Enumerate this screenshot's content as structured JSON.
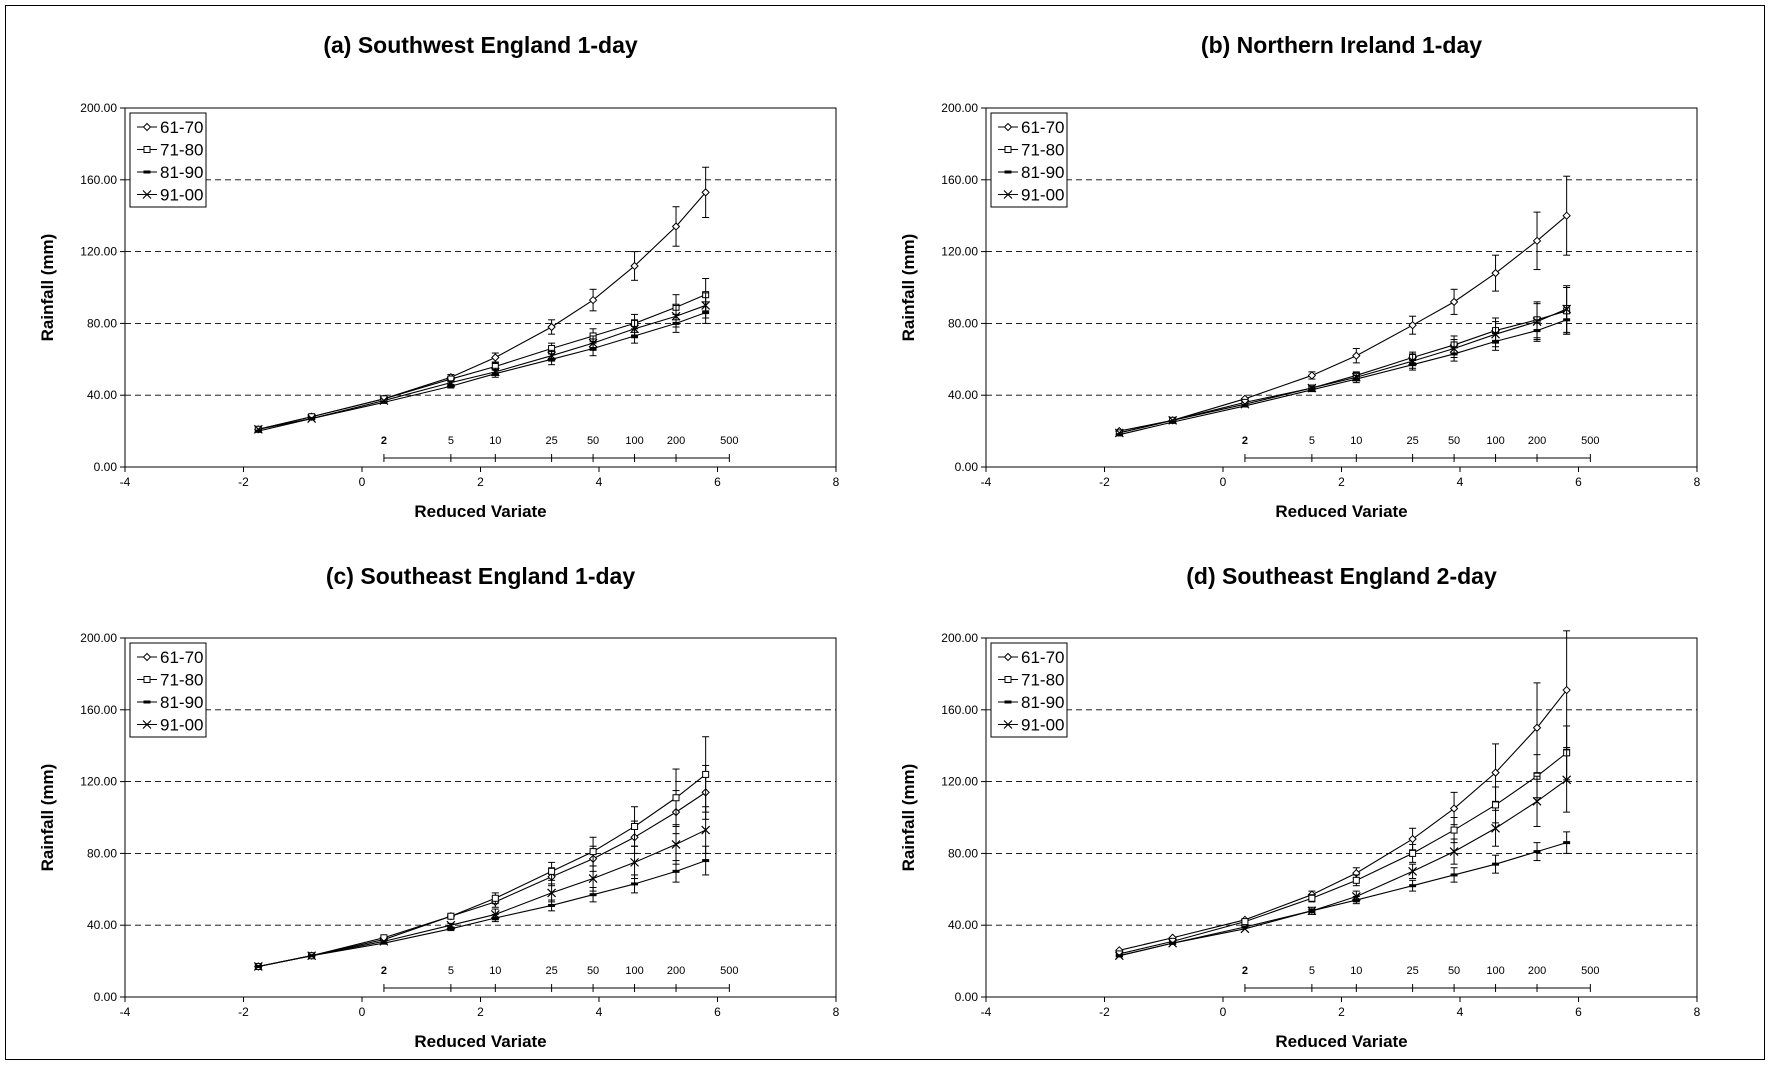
{
  "chart_data": [
    {
      "type": "line",
      "title": "(a) Southwest England 1-day",
      "xlabel": "Reduced Variate",
      "ylabel": "Rainfall (mm)",
      "xlim": [
        -4,
        8
      ],
      "ylim": [
        0,
        200
      ],
      "xticks": [
        "-4",
        "-2",
        "0",
        "2",
        "4",
        "6",
        "8"
      ],
      "yticks": [
        "0.00",
        "40.00",
        "80.00",
        "120.00",
        "160.00",
        "200.00"
      ],
      "gridlines": "horizontal dashed",
      "legend_position": "top-left",
      "return_period_axis": {
        "labels": [
          "2",
          "5",
          "10",
          "25",
          "50",
          "100",
          "200",
          "500"
        ],
        "y": 5
      },
      "x": [
        -1.75,
        -0.85,
        0.37,
        1.5,
        2.25,
        3.2,
        3.9,
        4.6,
        5.3,
        5.8
      ],
      "series": [
        {
          "name": "61-70",
          "marker": "diamond",
          "values": [
            21,
            28,
            38,
            50,
            61,
            78,
            93,
            112,
            134,
            153
          ],
          "errors": [
            0,
            0,
            0,
            1.5,
            2.5,
            4,
            6,
            8,
            11,
            14
          ]
        },
        {
          "name": "71-80",
          "marker": "square",
          "values": [
            21,
            28,
            38,
            49,
            56,
            66,
            73,
            80,
            89,
            96
          ],
          "errors": [
            0,
            0,
            0,
            1,
            2,
            3,
            4,
            5,
            7,
            9
          ]
        },
        {
          "name": "81-90",
          "marker": "dash",
          "values": [
            20,
            27,
            36,
            45,
            52,
            60,
            66,
            73,
            80,
            86
          ],
          "errors": [
            0,
            0,
            0,
            1,
            2,
            3,
            4,
            4,
            5,
            6
          ]
        },
        {
          "name": "91-00",
          "marker": "x",
          "values": [
            21,
            27,
            37,
            47,
            53,
            62,
            69,
            77,
            84,
            90
          ],
          "errors": [
            0,
            0,
            0,
            1,
            2,
            3,
            4,
            5,
            6,
            7
          ]
        }
      ]
    },
    {
      "type": "line",
      "title": "(b) Northern Ireland 1-day",
      "xlabel": "Reduced Variate",
      "ylabel": "Rainfall (mm)",
      "xlim": [
        -4,
        8
      ],
      "ylim": [
        0,
        200
      ],
      "xticks": [
        "-4",
        "-2",
        "0",
        "2",
        "4",
        "6",
        "8"
      ],
      "yticks": [
        "0.00",
        "40.00",
        "80.00",
        "120.00",
        "160.00",
        "200.00"
      ],
      "gridlines": "horizontal dashed",
      "legend_position": "top-left",
      "return_period_axis": {
        "labels": [
          "2",
          "5",
          "10",
          "25",
          "50",
          "100",
          "200",
          "500"
        ],
        "y": 5
      },
      "x": [
        -1.75,
        -0.85,
        0.37,
        1.5,
        2.25,
        3.2,
        3.9,
        4.6,
        5.3,
        5.8
      ],
      "series": [
        {
          "name": "61-70",
          "marker": "diamond",
          "values": [
            20,
            26,
            38,
            51,
            62,
            79,
            92,
            108,
            126,
            140
          ],
          "errors": [
            0,
            0,
            0,
            2,
            4,
            5,
            7,
            10,
            16,
            22
          ]
        },
        {
          "name": "71-80",
          "marker": "square",
          "values": [
            19,
            26,
            36,
            44,
            51,
            61,
            68,
            76,
            82,
            87
          ],
          "errors": [
            0,
            0,
            0,
            1,
            2,
            3,
            5,
            7,
            10,
            13
          ]
        },
        {
          "name": "81-90",
          "marker": "dash",
          "values": [
            18,
            25,
            34,
            43,
            49,
            57,
            63,
            70,
            76,
            82
          ],
          "errors": [
            0,
            0,
            0,
            1,
            2,
            3,
            4,
            5,
            6,
            8
          ]
        },
        {
          "name": "91-00",
          "marker": "x",
          "values": [
            19,
            26,
            35,
            44,
            50,
            59,
            66,
            74,
            81,
            88
          ],
          "errors": [
            0,
            0,
            0,
            1,
            2,
            4,
            5,
            7,
            10,
            13
          ]
        }
      ]
    },
    {
      "type": "line",
      "title": "(c) Southeast England 1-day",
      "xlabel": "Reduced Variate",
      "ylabel": "Rainfall (mm)",
      "xlim": [
        -4,
        8
      ],
      "ylim": [
        0,
        200
      ],
      "xticks": [
        "-4",
        "-2",
        "0",
        "2",
        "4",
        "6",
        "8"
      ],
      "yticks": [
        "0.00",
        "40.00",
        "80.00",
        "120.00",
        "160.00",
        "200.00"
      ],
      "gridlines": "horizontal dashed",
      "legend_position": "top-left",
      "return_period_axis": {
        "labels": [
          "2",
          "5",
          "10",
          "25",
          "50",
          "100",
          "200",
          "500"
        ],
        "y": 5
      },
      "x": [
        -1.75,
        -0.85,
        0.37,
        1.5,
        2.25,
        3.2,
        3.9,
        4.6,
        5.3,
        5.8
      ],
      "series": [
        {
          "name": "61-70",
          "marker": "diamond",
          "values": [
            17,
            23,
            32,
            45,
            53,
            67,
            77,
            89,
            103,
            114
          ],
          "errors": [
            0,
            0,
            0,
            1,
            3,
            5,
            7,
            9,
            12,
            15
          ]
        },
        {
          "name": "71-80",
          "marker": "square",
          "values": [
            17,
            23,
            33,
            45,
            55,
            70,
            81,
            95,
            111,
            124
          ],
          "errors": [
            0,
            0,
            0,
            1,
            3,
            5,
            8,
            11,
            16,
            21
          ]
        },
        {
          "name": "81-90",
          "marker": "dash",
          "values": [
            17,
            23,
            30,
            38,
            44,
            51,
            57,
            63,
            70,
            76
          ],
          "errors": [
            0,
            0,
            0,
            1,
            2,
            3,
            4,
            5,
            6,
            8
          ]
        },
        {
          "name": "91-00",
          "marker": "x",
          "values": [
            17,
            23,
            31,
            40,
            46,
            58,
            66,
            75,
            85,
            93
          ],
          "errors": [
            0,
            0,
            0,
            1,
            3,
            5,
            7,
            9,
            11,
            13
          ]
        }
      ]
    },
    {
      "type": "line",
      "title": "(d) Southeast England 2-day",
      "xlabel": "Reduced Variate",
      "ylabel": "Rainfall (mm)",
      "xlim": [
        -4,
        8
      ],
      "ylim": [
        0,
        200
      ],
      "xticks": [
        "-4",
        "-2",
        "0",
        "2",
        "4",
        "6",
        "8"
      ],
      "yticks": [
        "0.00",
        "40.00",
        "80.00",
        "120.00",
        "160.00",
        "200.00"
      ],
      "gridlines": "horizontal dashed",
      "legend_position": "top-left",
      "return_period_axis": {
        "labels": [
          "2",
          "5",
          "10",
          "25",
          "50",
          "100",
          "200",
          "500"
        ],
        "y": 5
      },
      "x": [
        -1.75,
        -0.85,
        0.37,
        1.5,
        2.25,
        3.2,
        3.9,
        4.6,
        5.3,
        5.8
      ],
      "series": [
        {
          "name": "61-70",
          "marker": "diamond",
          "values": [
            26,
            33,
            43,
            57,
            69,
            88,
            105,
            125,
            150,
            171
          ],
          "errors": [
            0,
            0,
            0,
            2,
            3,
            6,
            9,
            16,
            25,
            33
          ]
        },
        {
          "name": "71-80",
          "marker": "square",
          "values": [
            24,
            31,
            42,
            55,
            65,
            80,
            93,
            107,
            123,
            136
          ],
          "errors": [
            0,
            0,
            0,
            2,
            3,
            5,
            7,
            10,
            12,
            15
          ]
        },
        {
          "name": "81-90",
          "marker": "dash",
          "values": [
            23,
            30,
            39,
            48,
            54,
            62,
            68,
            74,
            81,
            86
          ],
          "errors": [
            0,
            0,
            0,
            1,
            2,
            3,
            4,
            5,
            5,
            6
          ]
        },
        {
          "name": "91-00",
          "marker": "x",
          "values": [
            23,
            30,
            38,
            48,
            56,
            70,
            81,
            94,
            109,
            121
          ],
          "errors": [
            0,
            0,
            0,
            2,
            3,
            4,
            7,
            10,
            14,
            18
          ]
        }
      ]
    }
  ]
}
